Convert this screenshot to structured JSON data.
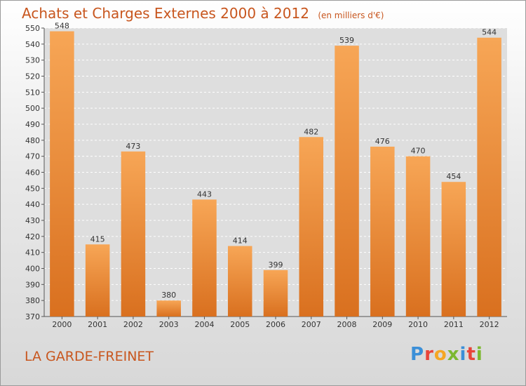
{
  "header": {
    "title": "Achats et Charges Externes 2000 à 2012",
    "unit": "(en milliers d'€)"
  },
  "footer": {
    "commune": "LA GARDE-FREINET"
  },
  "logo": {
    "letters": [
      {
        "char": "P",
        "color": "#3b8fd8"
      },
      {
        "char": "r",
        "color": "#e8443a"
      },
      {
        "char": "o",
        "color": "#f5a623"
      },
      {
        "char": "x",
        "color": "#7cb82f"
      },
      {
        "char": "i",
        "color": "#3b8fd8"
      },
      {
        "char": "t",
        "color": "#e8443a"
      },
      {
        "char": "i",
        "color": "#7cb82f"
      }
    ]
  },
  "chart_data": {
    "type": "bar",
    "categories": [
      "2000",
      "2001",
      "2002",
      "2003",
      "2004",
      "2005",
      "2006",
      "2007",
      "2008",
      "2009",
      "2010",
      "2011",
      "2012"
    ],
    "values": [
      548,
      415,
      473,
      380,
      443,
      414,
      399,
      482,
      539,
      476,
      470,
      454,
      544
    ],
    "ylim": [
      370,
      550
    ],
    "ytick_step": 10,
    "grid": true,
    "bar_color_light": "#f7a656",
    "bar_color_dark": "#d9701f",
    "plot_background": "#dedede"
  }
}
